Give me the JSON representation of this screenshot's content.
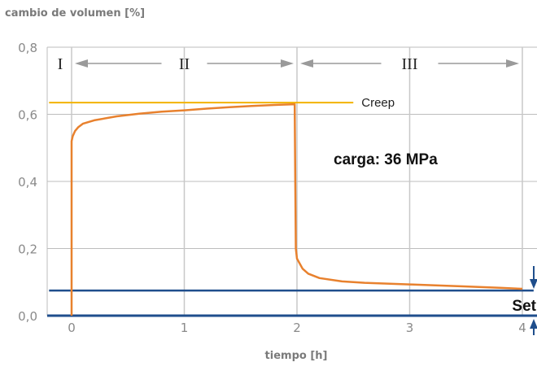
{
  "chart_data": {
    "type": "line",
    "title": "cambio de volumen [%]",
    "xlabel": "tiempo [h]",
    "ylabel": "cambio de volumen [%]",
    "xlim": [
      -0.2,
      4.1
    ],
    "ylim": [
      0,
      0.8
    ],
    "x_ticks": [
      0,
      1,
      2,
      3,
      4
    ],
    "x_tick_labels": [
      "0",
      "1",
      "2",
      "3",
      "4"
    ],
    "y_ticks": [
      0,
      0.2,
      0.4,
      0.6,
      0.8
    ],
    "y_tick_labels": [
      "0,0",
      "0,2",
      "0,4",
      "0,6",
      "0,8"
    ],
    "grid": true,
    "phases": [
      {
        "label": "I",
        "x_from": -0.2,
        "x_to": 0
      },
      {
        "label": "II",
        "x_from": 0,
        "x_to": 2
      },
      {
        "label": "III",
        "x_from": 2,
        "x_to": 4
      }
    ],
    "series": [
      {
        "color": "#e8812e",
        "points": [
          [
            0,
            0
          ],
          [
            0,
            0.52
          ],
          [
            0.01,
            0.535
          ],
          [
            0.03,
            0.55
          ],
          [
            0.06,
            0.562
          ],
          [
            0.1,
            0.572
          ],
          [
            0.2,
            0.582
          ],
          [
            0.4,
            0.594
          ],
          [
            0.6,
            0.602
          ],
          [
            0.8,
            0.608
          ],
          [
            1.0,
            0.612
          ],
          [
            1.2,
            0.617
          ],
          [
            1.4,
            0.621
          ],
          [
            1.6,
            0.625
          ],
          [
            1.8,
            0.628
          ],
          [
            1.98,
            0.63
          ],
          [
            1.985,
            0.4
          ],
          [
            1.99,
            0.2
          ],
          [
            2.0,
            0.17
          ],
          [
            2.05,
            0.14
          ],
          [
            2.1,
            0.125
          ],
          [
            2.2,
            0.112
          ],
          [
            2.4,
            0.102
          ],
          [
            2.6,
            0.098
          ],
          [
            3.0,
            0.093
          ],
          [
            3.5,
            0.087
          ],
          [
            3.8,
            0.083
          ],
          [
            4.0,
            0.08
          ]
        ]
      }
    ],
    "reference_lines": [
      {
        "label": "Creep",
        "y": 0.635,
        "x_from": -0.2,
        "x_to": 2.5,
        "color": "#f2b300"
      },
      {
        "label": "",
        "y": 0.075,
        "x_from": -0.2,
        "x_to": 4.1,
        "color": "#1f4e8c"
      }
    ],
    "annotations": {
      "load_text": "carga: 36 MPa",
      "set_text": "Set"
    }
  }
}
